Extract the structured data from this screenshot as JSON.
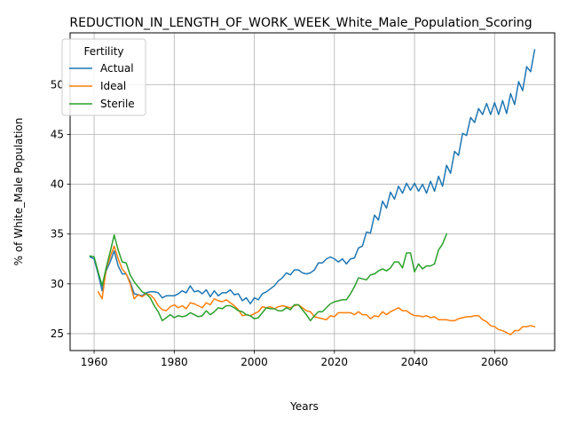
{
  "chart_data": {
    "type": "line",
    "title": "REDUCTION_IN_LENGTH_OF_WORK_WEEK_White_Male_Population_Scoring",
    "xlabel": "Years",
    "ylabel": "% of White_Male Population",
    "xlim": [
      1954,
      2075
    ],
    "ylim": [
      23.3,
      55.2
    ],
    "xticks": [
      1960,
      1980,
      2000,
      2020,
      2040,
      2060
    ],
    "yticks": [
      25,
      30,
      35,
      40,
      45,
      50
    ],
    "grid": true,
    "legend": {
      "title": "Fertility",
      "position": "top-left"
    },
    "series": [
      {
        "name": "Actual",
        "color": "#1f77b4",
        "x": [
          1959,
          1960,
          1961,
          1962,
          1963,
          1964,
          1965,
          1966,
          1967,
          1968,
          1969,
          1970,
          1971,
          1972,
          1973,
          1974,
          1975,
          1976,
          1977,
          1978,
          1979,
          1980,
          1981,
          1982,
          1983,
          1984,
          1985,
          1986,
          1987,
          1988,
          1989,
          1990,
          1991,
          1992,
          1993,
          1994,
          1995,
          1996,
          1997,
          1998,
          1999,
          2000,
          2001,
          2002,
          2003,
          2004,
          2005,
          2006,
          2007,
          2008,
          2009,
          2010,
          2011,
          2012,
          2013,
          2014,
          2015,
          2016,
          2017,
          2018,
          2019,
          2020,
          2021,
          2022,
          2023,
          2024,
          2025,
          2026,
          2027,
          2028,
          2029,
          2030,
          2031,
          2032,
          2033,
          2034,
          2035,
          2036,
          2037,
          2038,
          2039,
          2040,
          2041,
          2042,
          2043,
          2044,
          2045,
          2046,
          2047,
          2048,
          2049,
          2050,
          2051,
          2052,
          2053,
          2054,
          2055,
          2056,
          2057,
          2058,
          2059,
          2060,
          2061,
          2062,
          2063,
          2064,
          2065,
          2066,
          2067,
          2068,
          2069,
          2070
        ],
        "values": [
          32.7,
          32.5,
          31.0,
          29.3,
          31.3,
          32.2,
          33.3,
          31.8,
          31.0,
          31.0,
          30.2,
          29.0,
          28.9,
          28.8,
          29.1,
          29.2,
          29.2,
          29.1,
          28.6,
          28.8,
          28.8,
          28.8,
          29.0,
          29.3,
          29.1,
          29.8,
          29.2,
          29.3,
          29.0,
          29.4,
          28.7,
          29.3,
          28.8,
          29.1,
          29.1,
          29.4,
          28.9,
          29.0,
          28.3,
          28.6,
          28.0,
          28.6,
          28.4,
          29.0,
          29.2,
          29.5,
          29.8,
          30.3,
          30.6,
          31.1,
          30.9,
          31.4,
          31.4,
          31.1,
          31.0,
          31.1,
          31.4,
          32.1,
          32.1,
          32.5,
          32.7,
          32.5,
          32.2,
          32.5,
          32.0,
          32.5,
          32.6,
          33.6,
          33.8,
          35.2,
          35.1,
          36.9,
          36.4,
          38.3,
          37.6,
          39.2,
          38.5,
          39.8,
          39.1,
          40.1,
          39.4,
          40.1,
          39.3,
          40.0,
          39.1,
          40.3,
          39.3,
          40.8,
          39.8,
          41.9,
          41.1,
          43.3,
          42.9,
          45.1,
          44.9,
          46.7,
          46.2,
          47.6,
          47.0,
          48.1,
          47.0,
          48.2,
          47.0,
          48.4,
          47.1,
          49.1,
          48.0,
          50.3,
          49.4,
          51.8,
          51.3,
          53.5
        ]
      },
      {
        "name": "Ideal",
        "color": "#ff7f0e",
        "x": [
          1961,
          1962,
          1963,
          1964,
          1965,
          1966,
          1967,
          1968,
          1969,
          1970,
          1971,
          1972,
          1973,
          1974,
          1975,
          1976,
          1977,
          1978,
          1979,
          1980,
          1981,
          1982,
          1983,
          1984,
          1985,
          1986,
          1987,
          1988,
          1989,
          1990,
          1991,
          1992,
          1993,
          1994,
          1995,
          1996,
          1997,
          1998,
          1999,
          2000,
          2001,
          2002,
          2003,
          2004,
          2005,
          2006,
          2007,
          2008,
          2009,
          2010,
          2011,
          2012,
          2013,
          2014,
          2015,
          2016,
          2017,
          2018,
          2019,
          2020,
          2021,
          2022,
          2023,
          2024,
          2025,
          2026,
          2027,
          2028,
          2029,
          2030,
          2031,
          2032,
          2033,
          2034,
          2035,
          2036,
          2037,
          2038,
          2039,
          2040,
          2041,
          2042,
          2043,
          2044,
          2045,
          2046,
          2047,
          2048,
          2049,
          2050,
          2051,
          2052,
          2053,
          2054,
          2055,
          2056,
          2057,
          2058,
          2059,
          2060,
          2061,
          2062,
          2063,
          2064,
          2065,
          2066,
          2067,
          2068,
          2069,
          2070
        ],
        "values": [
          29.2,
          28.5,
          31.5,
          32.7,
          33.8,
          32.5,
          31.5,
          31.0,
          30.0,
          28.5,
          28.9,
          28.7,
          29.0,
          28.9,
          28.5,
          27.8,
          27.4,
          27.3,
          27.7,
          27.9,
          27.6,
          27.8,
          27.5,
          28.1,
          28.0,
          27.8,
          27.6,
          28.1,
          27.9,
          28.5,
          28.3,
          28.2,
          28.4,
          28.1,
          27.8,
          27.4,
          26.8,
          26.9,
          26.8,
          27.0,
          27.2,
          27.7,
          27.6,
          27.7,
          27.5,
          27.7,
          27.8,
          27.7,
          27.6,
          27.8,
          27.9,
          27.6,
          27.3,
          27.2,
          26.7,
          26.6,
          26.5,
          26.4,
          26.8,
          26.7,
          27.1,
          27.1,
          27.1,
          27.1,
          26.9,
          27.2,
          26.9,
          26.9,
          26.5,
          26.8,
          26.7,
          27.2,
          26.9,
          27.2,
          27.4,
          27.6,
          27.3,
          27.3,
          27.0,
          26.8,
          26.8,
          26.7,
          26.8,
          26.6,
          26.7,
          26.4,
          26.4,
          26.4,
          26.3,
          26.3,
          26.5,
          26.6,
          26.7,
          26.7,
          26.8,
          26.8,
          26.4,
          26.2,
          25.8,
          25.7,
          25.4,
          25.3,
          25.1,
          24.9,
          25.3,
          25.3,
          25.7,
          25.7,
          25.8,
          25.7
        ]
      },
      {
        "name": "Sterile",
        "color": "#2ca02c",
        "x": [
          1959,
          1960,
          1961,
          1962,
          1963,
          1964,
          1965,
          1966,
          1967,
          1968,
          1969,
          1970,
          1971,
          1972,
          1973,
          1974,
          1975,
          1976,
          1977,
          1978,
          1979,
          1980,
          1981,
          1982,
          1983,
          1984,
          1985,
          1986,
          1987,
          1988,
          1989,
          1990,
          1991,
          1992,
          1993,
          1994,
          1995,
          1996,
          1997,
          1998,
          1999,
          2000,
          2001,
          2002,
          2003,
          2004,
          2005,
          2006,
          2007,
          2008,
          2009,
          2010,
          2011,
          2012,
          2013,
          2014,
          2015,
          2016,
          2017,
          2018,
          2019,
          2020,
          2021,
          2022,
          2023,
          2024,
          2025,
          2026,
          2027,
          2028,
          2029,
          2030,
          2031,
          2032,
          2033,
          2034,
          2035,
          2036,
          2037,
          2038,
          2039,
          2040,
          2041,
          2042,
          2043,
          2044,
          2045,
          2046,
          2047,
          2048
        ],
        "values": [
          32.8,
          32.7,
          31.2,
          29.8,
          31.6,
          33.2,
          34.9,
          33.4,
          32.2,
          32.1,
          30.9,
          30.2,
          29.7,
          29.2,
          29.0,
          28.6,
          27.8,
          27.2,
          26.3,
          26.6,
          26.9,
          26.6,
          26.8,
          26.7,
          26.8,
          27.1,
          26.9,
          26.7,
          26.8,
          27.3,
          26.9,
          27.2,
          27.6,
          27.5,
          27.8,
          27.8,
          27.6,
          27.3,
          27.2,
          26.9,
          26.8,
          26.5,
          26.6,
          27.1,
          27.6,
          27.5,
          27.5,
          27.3,
          27.3,
          27.6,
          27.4,
          27.9,
          27.9,
          27.4,
          26.9,
          26.3,
          26.8,
          27.2,
          27.2,
          27.6,
          28.0,
          28.2,
          28.3,
          28.4,
          28.4,
          29.0,
          29.7,
          30.6,
          30.5,
          30.4,
          30.9,
          31.0,
          31.3,
          31.5,
          31.3,
          31.6,
          32.2,
          32.2,
          31.6,
          33.1,
          33.1,
          31.2,
          32.0,
          31.5,
          31.8,
          31.8,
          32.0,
          33.4,
          34.0,
          35.0
        ]
      }
    ]
  }
}
